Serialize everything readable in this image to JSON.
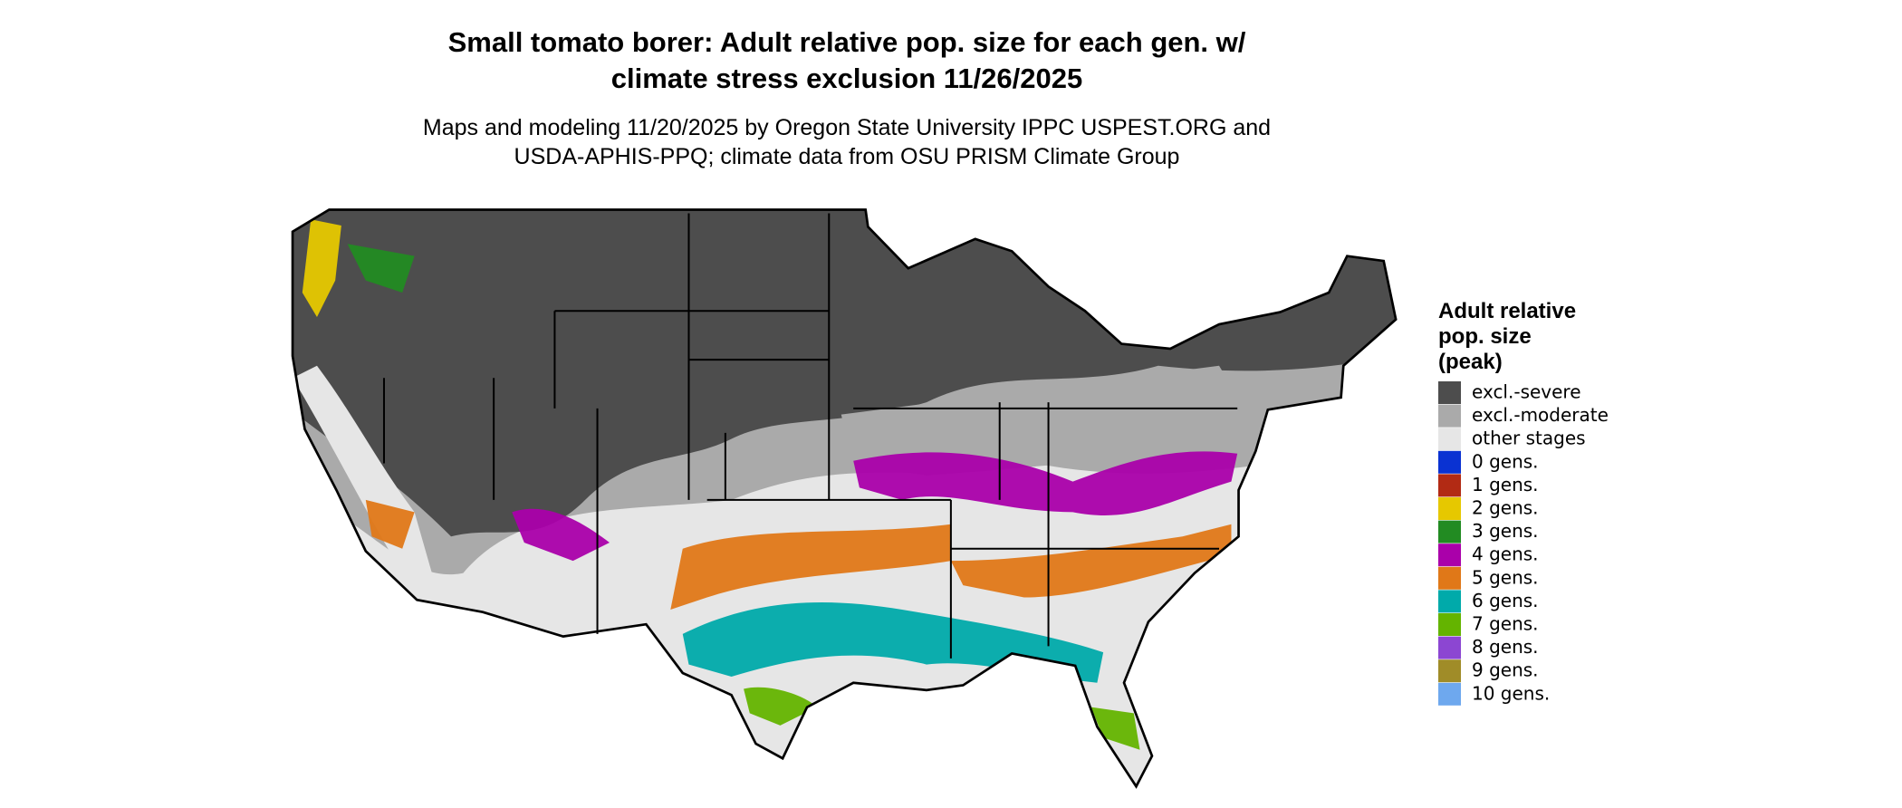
{
  "header": {
    "title_lines": [
      "Small tomato borer: Adult relative pop. size for each gen. w/",
      "climate stress exclusion 11/26/2025"
    ],
    "subtitle_lines": [
      "Maps and modeling 11/20/2025 by Oregon State University IPPC USPEST.ORG and",
      "USDA-APHIS-PPQ; climate data from OSU PRISM Climate Group"
    ]
  },
  "legend": {
    "title_lines": [
      "Adult relative",
      "pop. size",
      "(peak)"
    ],
    "items": [
      {
        "label": "excl.-severe",
        "color": "#4d4d4d"
      },
      {
        "label": "excl.-moderate",
        "color": "#aaaaaa"
      },
      {
        "label": "other stages",
        "color": "#e6e6e6"
      },
      {
        "label": "0 gens.",
        "color": "#0a32d2"
      },
      {
        "label": "1 gens.",
        "color": "#b22a14"
      },
      {
        "label": "2 gens.",
        "color": "#e6c800"
      },
      {
        "label": "3 gens.",
        "color": "#228b22"
      },
      {
        "label": "4 gens.",
        "color": "#aa00aa"
      },
      {
        "label": "5 gens.",
        "color": "#e07818"
      },
      {
        "label": "6 gens.",
        "color": "#00aaaa"
      },
      {
        "label": "7 gens.",
        "color": "#64b400"
      },
      {
        "label": "8 gens.",
        "color": "#8c46d2"
      },
      {
        "label": "9 gens.",
        "color": "#a08c28"
      },
      {
        "label": "10 gens.",
        "color": "#6ea8ee"
      }
    ]
  }
}
